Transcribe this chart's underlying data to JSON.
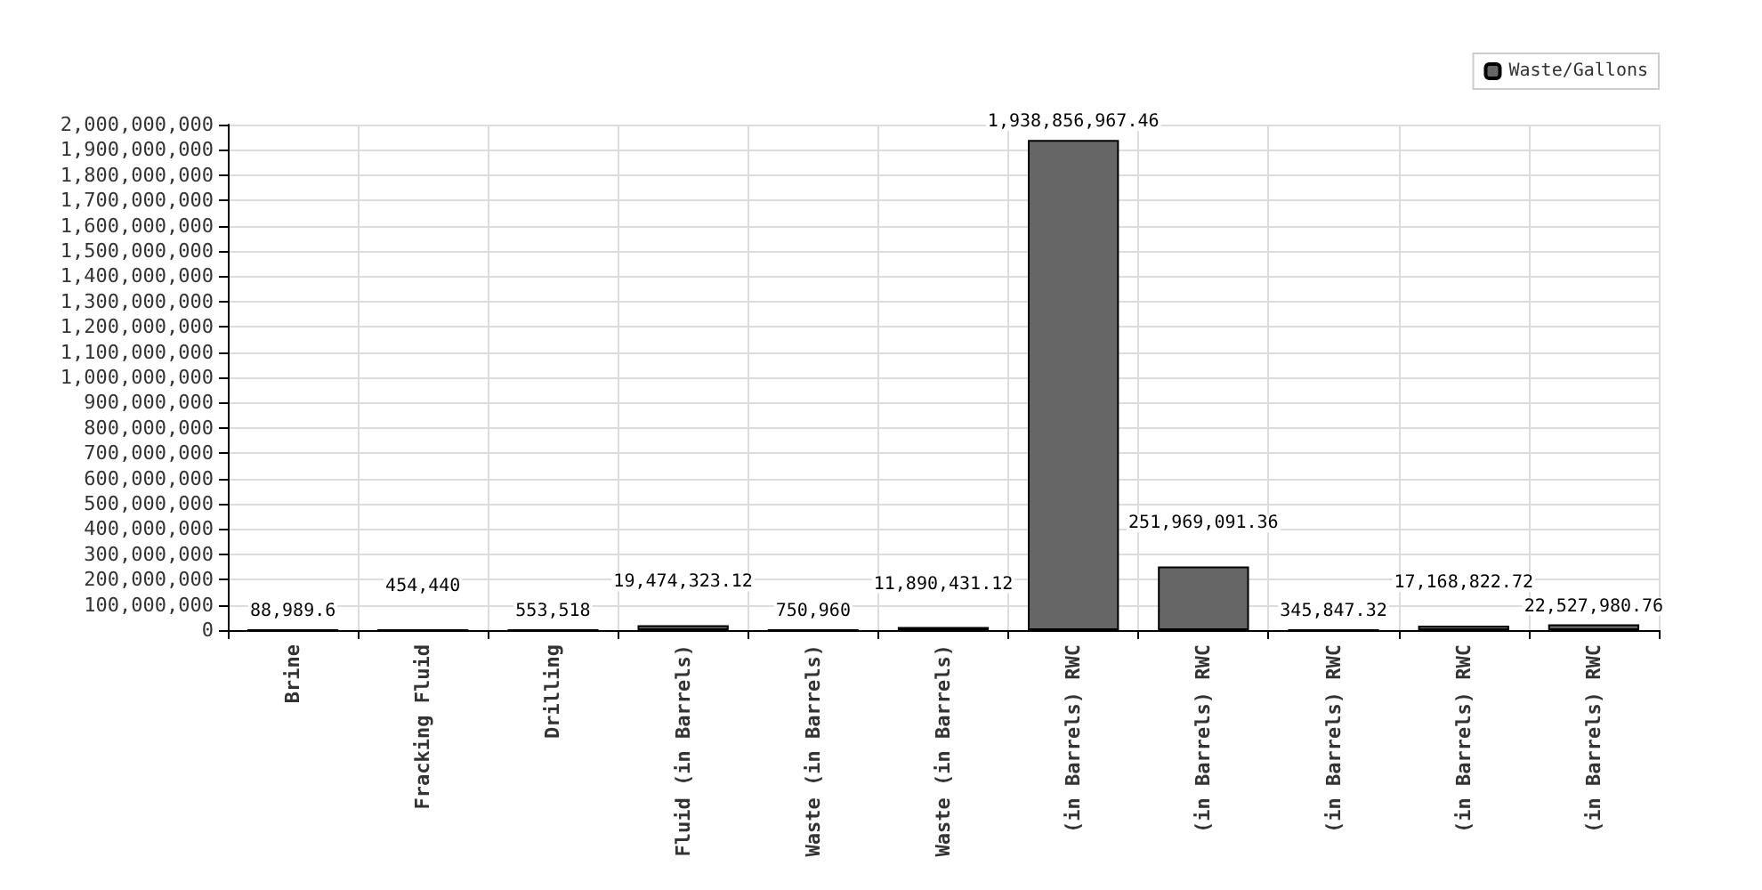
{
  "chart_data": {
    "type": "bar",
    "categories": [
      "Brine",
      "Fracking Fluid",
      "Drilling",
      "Fluid (in Barrels)",
      "Waste (in Barrels)",
      "Waste (in Barrels)",
      "(in Barrels) RWC",
      "(in Barrels) RWC",
      "(in Barrels) RWC",
      "(in Barrels) RWC",
      "(in Barrels) RWC"
    ],
    "series": [
      {
        "name": "Waste/Gallons",
        "color": "#666666",
        "values": [
          88989.6,
          454440,
          553518,
          19474323.12,
          750960,
          11890431.12,
          1938856967.46,
          251969091.36,
          345847.32,
          17168822.72,
          22527980.76
        ],
        "value_labels": [
          "88,989.6",
          "454,440",
          "553,518",
          "19,474,323.12",
          "750,960",
          "11,890,431.12",
          "1,938,856,967.46",
          "251,969,091.36",
          "345,847.32",
          "17,168,822.72",
          "22,527,980.76"
        ]
      }
    ],
    "ylim": [
      0,
      2000000000
    ],
    "yticks": [
      0,
      {
        "value": 100000000,
        "label": "100,000,000"
      },
      {
        "value": 200000000,
        "label": "200,000,000"
      },
      {
        "value": 300000000,
        "label": "300,000,000"
      },
      {
        "value": 400000000,
        "label": "400,000,000"
      },
      {
        "value": 500000000,
        "label": "500,000,000"
      },
      {
        "value": 600000000,
        "label": "600,000,000"
      },
      {
        "value": 700000000,
        "label": "700,000,000"
      },
      {
        "value": 800000000,
        "label": "800,000,000"
      },
      {
        "value": 900000000,
        "label": "900,000,000"
      },
      {
        "value": 1000000000,
        "label": "1,000,000,000"
      },
      {
        "value": 1100000000,
        "label": "1,100,000,000"
      },
      {
        "value": 1200000000,
        "label": "1,200,000,000"
      },
      {
        "value": 1300000000,
        "label": "1,300,000,000"
      },
      {
        "value": 1400000000,
        "label": "1,400,000,000"
      },
      {
        "value": 1500000000,
        "label": "1,500,000,000"
      },
      {
        "value": 1600000000,
        "label": "1,600,000,000"
      },
      {
        "value": 1700000000,
        "label": "1,700,000,000"
      },
      {
        "value": 1800000000,
        "label": "1,800,000,000"
      },
      {
        "value": 1900000000,
        "label": "1,900,000,000"
      },
      {
        "value": 2000000000,
        "label": "2,000,000,000"
      }
    ],
    "grid": true,
    "legend": "top right"
  }
}
